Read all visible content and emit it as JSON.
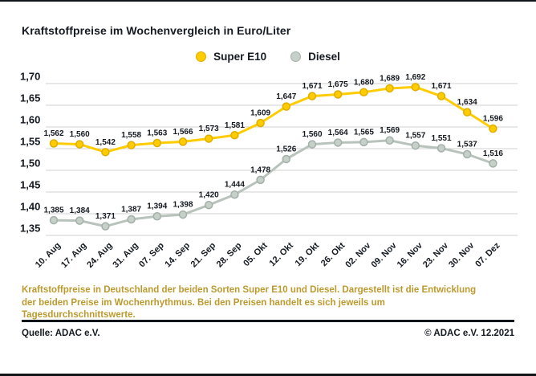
{
  "header": {
    "title": "Kraftstoffpreise im Wochenvergleich in Euro/Liter"
  },
  "legend": [
    {
      "label": "Super E10",
      "color": "#ffcc00",
      "stroke": "#e0ad00"
    },
    {
      "label": "Diesel",
      "color": "#c6cfc8",
      "stroke": "#a3b0a9"
    }
  ],
  "chart_data": {
    "type": "line",
    "title": "Kraftstoffpreise im Wochenvergleich in Euro/Liter",
    "categories": [
      "10. Aug",
      "17. Aug",
      "24. Aug",
      "31. Aug",
      "07. Sep",
      "14. Sep",
      "21. Sep",
      "28. Sep",
      "05. Okt",
      "12. Okt",
      "19. Okt",
      "26. Okt",
      "02. Nov",
      "09. Nov",
      "16. Nov",
      "23. Nov",
      "30. Nov",
      "07. Dez"
    ],
    "series": [
      {
        "name": "Super E10",
        "values": [
          1.562,
          1.56,
          1.542,
          1.558,
          1.563,
          1.566,
          1.573,
          1.581,
          1.609,
          1.647,
          1.671,
          1.675,
          1.68,
          1.689,
          1.692,
          1.671,
          1.634,
          1.596
        ],
        "line_color": "#ffcc00",
        "dot_fill": "#ffcc00",
        "dot_stroke": "#e0ad00"
      },
      {
        "name": "Diesel",
        "values": [
          1.385,
          1.384,
          1.371,
          1.387,
          1.394,
          1.398,
          1.42,
          1.444,
          1.478,
          1.526,
          1.56,
          1.564,
          1.565,
          1.569,
          1.557,
          1.551,
          1.537,
          1.516
        ],
        "line_color": "#b8c3bc",
        "dot_fill": "#c6cfc8",
        "dot_stroke": "#a3b0a9"
      }
    ],
    "xlabel": "",
    "ylabel": "Euro/Liter",
    "ylim": [
      1.35,
      1.7
    ],
    "ytick_step": 0.05,
    "ytick_labels": [
      "1,70",
      "1,65",
      "1,60",
      "1,55",
      "1,50",
      "1,45",
      "1,40",
      "1,35"
    ],
    "grid": true,
    "legend_position": "top-center",
    "decimal_separator": ",",
    "grid_color": "#d0d0d0",
    "label_color": "#141a21"
  },
  "caption": {
    "text": "Kraftstoffpreise in Deutschland der beiden Sorten Super E10 und Diesel. Dargestellt ist die Entwicklung der beiden Preise im Wochenrhythmus. Bei den Preisen handelt es sich jeweils um Tagesdurchschnittswerte.",
    "color": "#bd9a2e"
  },
  "footer": {
    "source": "Quelle: ADAC e.V.",
    "copyright": "© ADAC e.V. 12.2021"
  }
}
